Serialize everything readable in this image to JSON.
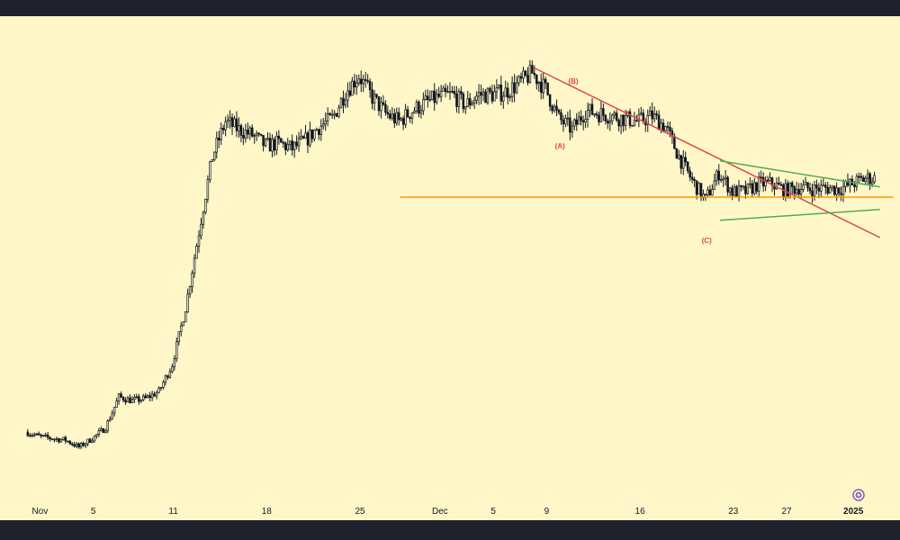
{
  "colors": {
    "background": "#fff7c8",
    "frame": "#1e222d",
    "candle": "#131722",
    "resistance": "#e0474c",
    "triangle": "#4caf50",
    "support": "#ff9800",
    "wave_label": "#e0474c",
    "button": "#7e57c2"
  },
  "chart_data": {
    "type": "candlestick",
    "title": "",
    "xlabel": "",
    "ylabel": "",
    "grid": false,
    "x_ticks": [
      {
        "label": "Nov",
        "date": "2024-11-01"
      },
      {
        "label": "5",
        "date": "2024-11-05"
      },
      {
        "label": "11",
        "date": "2024-11-11"
      },
      {
        "label": "18",
        "date": "2024-11-18"
      },
      {
        "label": "25",
        "date": "2024-11-25"
      },
      {
        "label": "Dec",
        "date": "2024-12-01"
      },
      {
        "label": "5",
        "date": "2024-12-05"
      },
      {
        "label": "9",
        "date": "2024-12-09"
      },
      {
        "label": "16",
        "date": "2024-12-16"
      },
      {
        "label": "23",
        "date": "2024-12-23"
      },
      {
        "label": "27",
        "date": "2024-12-27"
      },
      {
        "label": "2025",
        "date": "2025-01-01",
        "bold": true
      }
    ],
    "price_path": [
      [
        "2024-10-31",
        0.33
      ],
      [
        "2024-11-01",
        0.322
      ],
      [
        "2024-11-02",
        0.318
      ],
      [
        "2024-11-03",
        0.315
      ],
      [
        "2024-11-04",
        0.302
      ],
      [
        "2024-11-05",
        0.318
      ],
      [
        "2024-11-06",
        0.338
      ],
      [
        "2024-11-07",
        0.395
      ],
      [
        "2024-11-08",
        0.388
      ],
      [
        "2024-11-09",
        0.392
      ],
      [
        "2024-11-10",
        0.405
      ],
      [
        "2024-11-11",
        0.455
      ],
      [
        "2024-11-12",
        0.56
      ],
      [
        "2024-11-13",
        0.7
      ],
      [
        "2024-11-14",
        0.84
      ],
      [
        "2024-11-15",
        0.905
      ],
      [
        "2024-11-16",
        0.89
      ],
      [
        "2024-11-17",
        0.88
      ],
      [
        "2024-11-18",
        0.86
      ],
      [
        "2024-11-19",
        0.865
      ],
      [
        "2024-11-20",
        0.855
      ],
      [
        "2024-11-21",
        0.87
      ],
      [
        "2024-11-22",
        0.895
      ],
      [
        "2024-11-23",
        0.91
      ],
      [
        "2024-11-24",
        0.96
      ],
      [
        "2024-11-25",
        0.99
      ],
      [
        "2024-11-26",
        0.95
      ],
      [
        "2024-11-27",
        0.92
      ],
      [
        "2024-11-28",
        0.905
      ],
      [
        "2024-11-29",
        0.925
      ],
      [
        "2024-11-30",
        0.94
      ],
      [
        "2024-12-01",
        0.95
      ],
      [
        "2024-12-02",
        0.955
      ],
      [
        "2024-12-03",
        0.935
      ],
      [
        "2024-12-04",
        0.955
      ],
      [
        "2024-12-05",
        0.955
      ],
      [
        "2024-12-06",
        0.96
      ],
      [
        "2024-12-07",
        0.975
      ],
      [
        "2024-12-08",
        0.995
      ],
      [
        "2024-12-09",
        0.965
      ],
      [
        "2024-12-10",
        0.91
      ],
      [
        "2024-12-11",
        0.89
      ],
      [
        "2024-12-12",
        0.925
      ],
      [
        "2024-12-13",
        0.92
      ],
      [
        "2024-12-14",
        0.915
      ],
      [
        "2024-12-15",
        0.91
      ],
      [
        "2024-12-16",
        0.905
      ],
      [
        "2024-12-17",
        0.915
      ],
      [
        "2024-12-18",
        0.895
      ],
      [
        "2024-12-19",
        0.84
      ],
      [
        "2024-12-20",
        0.795
      ],
      [
        "2024-12-21",
        0.76
      ],
      [
        "2024-12-22",
        0.81
      ],
      [
        "2024-12-23",
        0.775
      ],
      [
        "2024-12-24",
        0.775
      ],
      [
        "2024-12-25",
        0.79
      ],
      [
        "2024-12-26",
        0.79
      ],
      [
        "2024-12-27",
        0.777
      ],
      [
        "2024-12-28",
        0.783
      ],
      [
        "2024-12-29",
        0.78
      ],
      [
        "2024-12-30",
        0.782
      ],
      [
        "2024-12-31",
        0.78
      ],
      [
        "2025-01-01",
        0.79
      ],
      [
        "2025-01-02",
        0.8
      ]
    ],
    "annotations": [
      {
        "text": "(A)",
        "date": "2024-12-10",
        "price": 0.855
      },
      {
        "text": "(B)",
        "date": "2024-12-11",
        "price": 0.975
      },
      {
        "text": "(C)",
        "date": "2024-12-21",
        "price": 0.68
      }
    ],
    "trendlines": [
      {
        "name": "descending-resistance",
        "color": "#e0474c",
        "from": [
          "2024-12-08",
          1.005
        ],
        "to": [
          "2025-01-03",
          0.69
        ]
      },
      {
        "name": "triangle-upper",
        "color": "#4caf50",
        "from": [
          "2024-12-22",
          0.832
        ],
        "to": [
          "2025-01-03",
          0.784
        ]
      },
      {
        "name": "triangle-lower",
        "color": "#4caf50",
        "from": [
          "2024-12-22",
          0.722
        ],
        "to": [
          "2025-01-03",
          0.742
        ]
      },
      {
        "name": "horizontal-support",
        "color": "#ff9800",
        "from": [
          "2024-11-28",
          0.765
        ],
        "to": [
          "2025-01-04",
          0.765
        ]
      }
    ],
    "ylim": [
      0.2,
      1.1
    ]
  }
}
